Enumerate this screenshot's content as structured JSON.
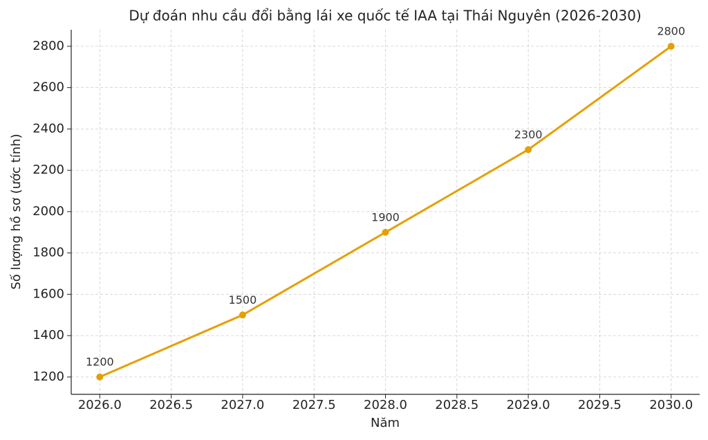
{
  "chart_data": {
    "type": "line",
    "title": "Dự đoán nhu cầu đổi bằng lái xe quốc tế IAA tại Thái Nguyên (2026-2030)",
    "x_label": "Năm",
    "y_label": "Số lượng hồ sơ (ước tính)",
    "x": [
      2026,
      2027,
      2028,
      2029,
      2030
    ],
    "series": [
      {
        "color": "#e69f00",
        "values": [
          1200,
          1500,
          1900,
          2300,
          2800
        ]
      }
    ],
    "xlim": [
      2025.8,
      2030.2
    ],
    "ylim": [
      1116,
      2880
    ],
    "xticks": [
      {
        "value": 2026,
        "label": "2026.0"
      },
      {
        "value": 2026.5,
        "label": "2026.5"
      },
      {
        "value": 2027,
        "label": "2027.0"
      },
      {
        "value": 2027.5,
        "label": "2027.5"
      },
      {
        "value": 2028,
        "label": "2028.0"
      },
      {
        "value": 2028.5,
        "label": "2028.5"
      },
      {
        "value": 2029,
        "label": "2029.0"
      },
      {
        "value": 2029.5,
        "label": "2029.5"
      },
      {
        "value": 2030,
        "label": "2030.0"
      }
    ],
    "yticks": [
      1200,
      1400,
      1600,
      1800,
      2000,
      2200,
      2400,
      2600,
      2800
    ],
    "grid": true
  }
}
